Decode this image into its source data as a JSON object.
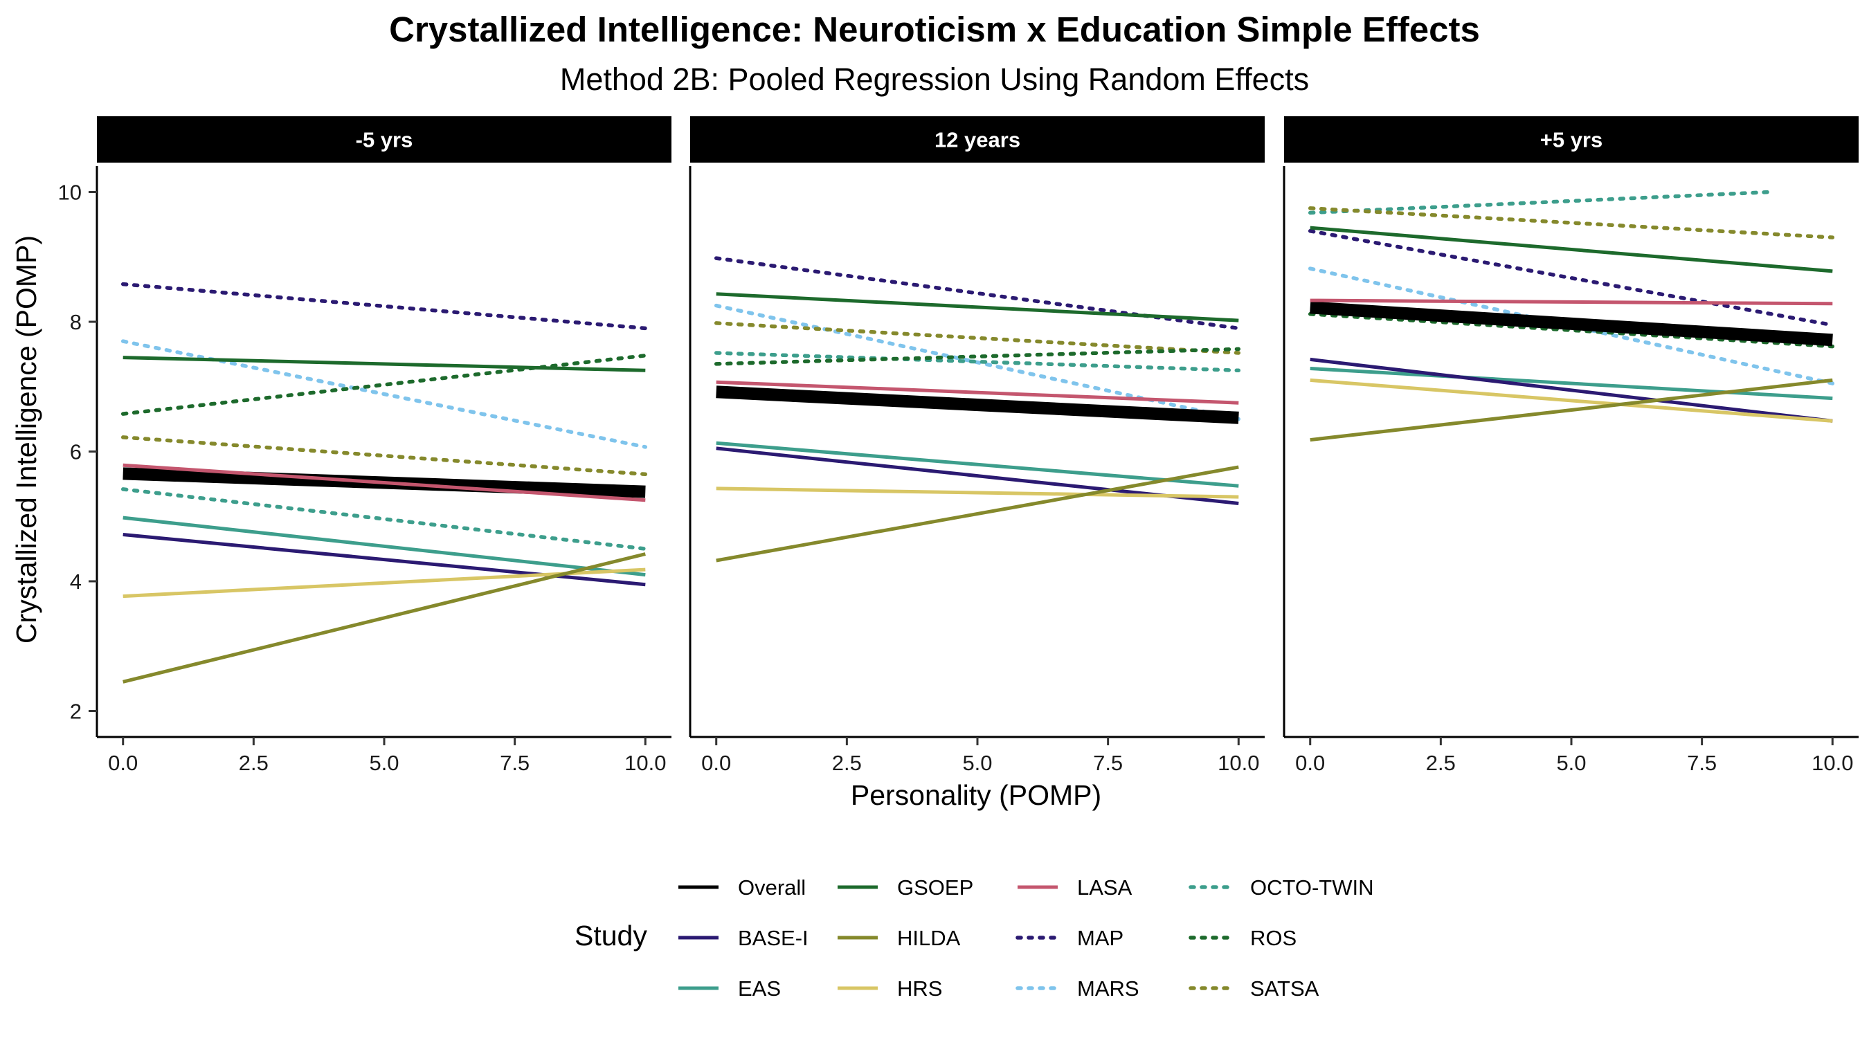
{
  "chart_data": {
    "type": "line",
    "title": "Crystallized Intelligence: Neuroticism x Education Simple Effects",
    "subtitle": "Method 2B: Pooled Regression Using Random Effects",
    "xlabel": "Personality (POMP)",
    "ylabel": "Crystallized Intelligence (POMP)",
    "xlim": [
      -0.5,
      10.5
    ],
    "ylim": [
      1.6,
      10.4
    ],
    "xticks": [
      0,
      2.5,
      5,
      7.5,
      10
    ],
    "xtick_labels": [
      "0.0",
      "2.5",
      "5.0",
      "7.5",
      "10.0"
    ],
    "yticks": [
      2,
      4,
      6,
      8,
      10
    ],
    "ytick_labels": [
      "2",
      "4",
      "6",
      "8",
      "10"
    ],
    "grid": false,
    "legend": {
      "title": "Study",
      "position": "bottom",
      "columns": [
        [
          "Overall",
          "BASE-I",
          "EAS"
        ],
        [
          "GSOEP",
          "HILDA",
          "HRS"
        ],
        [
          "LASA",
          "MAP",
          "MARS"
        ],
        [
          "OCTO-TWIN",
          "ROS",
          "SATSA"
        ]
      ]
    },
    "styles": {
      "Overall": {
        "color": "#000000",
        "dash": "solid"
      },
      "BASE-I": {
        "color": "#2b1a72",
        "dash": "solid"
      },
      "EAS": {
        "color": "#3d9e8c",
        "dash": "solid"
      },
      "GSOEP": {
        "color": "#1d6a2c",
        "dash": "solid"
      },
      "HILDA": {
        "color": "#85892c",
        "dash": "solid"
      },
      "HRS": {
        "color": "#d8c665",
        "dash": "solid"
      },
      "LASA": {
        "color": "#c4566e",
        "dash": "solid"
      },
      "MAP": {
        "color": "#2b1a72",
        "dash": "dotted"
      },
      "MARS": {
        "color": "#7fc4ec",
        "dash": "dotted"
      },
      "OCTO-TWIN": {
        "color": "#3d9e8c",
        "dash": "dotted"
      },
      "ROS": {
        "color": "#1d6a2c",
        "dash": "dotted"
      },
      "SATSA": {
        "color": "#85892c",
        "dash": "dotted"
      }
    },
    "panels": [
      {
        "label": "-5 yrs",
        "series": [
          {
            "name": "MAP",
            "x": [
              0,
              10
            ],
            "y": [
              8.58,
              7.9
            ]
          },
          {
            "name": "MARS",
            "x": [
              0,
              10
            ],
            "y": [
              7.7,
              6.07
            ]
          },
          {
            "name": "ROS",
            "x": [
              0,
              10
            ],
            "y": [
              6.58,
              7.48
            ]
          },
          {
            "name": "SATSA",
            "x": [
              0,
              10
            ],
            "y": [
              6.22,
              5.65
            ]
          },
          {
            "name": "OCTO-TWIN",
            "x": [
              0,
              10
            ],
            "y": [
              5.42,
              4.5
            ]
          },
          {
            "name": "GSOEP",
            "x": [
              0,
              10
            ],
            "y": [
              7.45,
              7.25
            ]
          },
          {
            "name": "EAS",
            "x": [
              0,
              10
            ],
            "y": [
              4.98,
              4.1
            ]
          },
          {
            "name": "BASE-I",
            "x": [
              0,
              10
            ],
            "y": [
              4.72,
              3.95
            ]
          },
          {
            "name": "HRS",
            "x": [
              0,
              10
            ],
            "y": [
              3.77,
              4.18
            ]
          },
          {
            "name": "HILDA",
            "x": [
              0,
              10
            ],
            "y": [
              2.45,
              4.42
            ]
          },
          {
            "name": "Overall",
            "x": [
              0,
              10
            ],
            "y": [
              5.66,
              5.38
            ]
          },
          {
            "name": "LASA",
            "x": [
              0,
              10
            ],
            "y": [
              5.79,
              5.25
            ]
          }
        ]
      },
      {
        "label": "12 years",
        "series": [
          {
            "name": "MAP",
            "x": [
              0,
              10
            ],
            "y": [
              8.98,
              7.9
            ]
          },
          {
            "name": "MARS",
            "x": [
              0,
              10
            ],
            "y": [
              8.25,
              6.5
            ]
          },
          {
            "name": "SATSA",
            "x": [
              0,
              10
            ],
            "y": [
              7.98,
              7.52
            ]
          },
          {
            "name": "OCTO-TWIN",
            "x": [
              0,
              10
            ],
            "y": [
              7.52,
              7.25
            ]
          },
          {
            "name": "ROS",
            "x": [
              0,
              10
            ],
            "y": [
              7.35,
              7.58
            ]
          },
          {
            "name": "GSOEP",
            "x": [
              0,
              10
            ],
            "y": [
              8.43,
              8.02
            ]
          },
          {
            "name": "EAS",
            "x": [
              0,
              10
            ],
            "y": [
              6.13,
              5.47
            ]
          },
          {
            "name": "BASE-I",
            "x": [
              0,
              10
            ],
            "y": [
              6.05,
              5.2
            ]
          },
          {
            "name": "HRS",
            "x": [
              0,
              10
            ],
            "y": [
              5.43,
              5.3
            ]
          },
          {
            "name": "HILDA",
            "x": [
              0,
              10
            ],
            "y": [
              4.32,
              5.76
            ]
          },
          {
            "name": "Overall",
            "x": [
              0,
              10
            ],
            "y": [
              6.92,
              6.52
            ]
          },
          {
            "name": "LASA",
            "x": [
              0,
              10
            ],
            "y": [
              7.07,
              6.75
            ]
          }
        ]
      },
      {
        "label": "+5 yrs",
        "series": [
          {
            "name": "OCTO-TWIN",
            "x": [
              0,
              8.8
            ],
            "y": [
              9.68,
              10.0
            ]
          },
          {
            "name": "SATSA",
            "x": [
              0,
              10
            ],
            "y": [
              9.75,
              9.3
            ]
          },
          {
            "name": "MAP",
            "x": [
              0,
              10
            ],
            "y": [
              9.4,
              7.95
            ]
          },
          {
            "name": "MARS",
            "x": [
              0,
              10
            ],
            "y": [
              8.82,
              7.05
            ]
          },
          {
            "name": "ROS",
            "x": [
              0,
              10
            ],
            "y": [
              8.12,
              7.62
            ]
          },
          {
            "name": "GSOEP",
            "x": [
              0,
              10
            ],
            "y": [
              9.45,
              8.78
            ]
          },
          {
            "name": "EAS",
            "x": [
              0,
              10
            ],
            "y": [
              7.28,
              6.82
            ]
          },
          {
            "name": "BASE-I",
            "x": [
              0,
              10
            ],
            "y": [
              7.42,
              6.47
            ]
          },
          {
            "name": "HRS",
            "x": [
              0,
              10
            ],
            "y": [
              7.1,
              6.47
            ]
          },
          {
            "name": "HILDA",
            "x": [
              0,
              10
            ],
            "y": [
              6.18,
              7.1
            ]
          },
          {
            "name": "Overall",
            "x": [
              0,
              10
            ],
            "y": [
              8.22,
              7.72
            ]
          },
          {
            "name": "LASA",
            "x": [
              0,
              10
            ],
            "y": [
              8.33,
              8.28
            ]
          }
        ]
      }
    ]
  }
}
